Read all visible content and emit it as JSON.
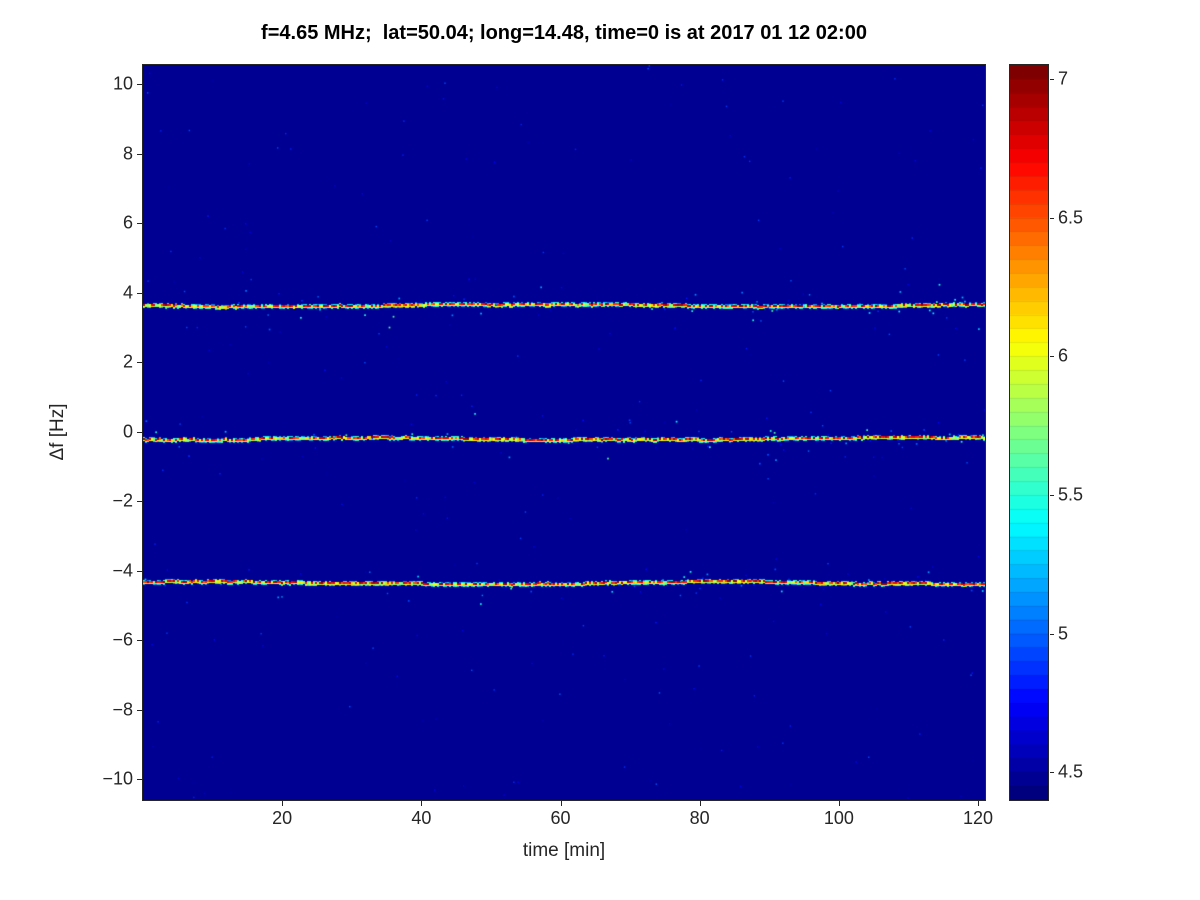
{
  "chart_data": {
    "type": "heatmap",
    "title": "f=4.65 MHz;  lat=50.04; long=14.48, time=0 is at 2017 01 12 02:00",
    "xlabel": "time [min]",
    "ylabel": "Δf [Hz]",
    "xlim": [
      0,
      121
    ],
    "ylim": [
      -10.6,
      10.55
    ],
    "xticks": [
      20,
      40,
      60,
      80,
      100,
      120
    ],
    "yticks": [
      10,
      8,
      6,
      4,
      2,
      0,
      -2,
      -4,
      -6,
      -8,
      -10
    ],
    "grid": false,
    "colorbar": {
      "colormap": "jet",
      "clim": [
        4.4,
        7.05
      ],
      "ticks": [
        4.5,
        5,
        5.5,
        6,
        6.5,
        7
      ],
      "position": "right"
    },
    "background_value": 4.45,
    "spectral_lines": [
      {
        "delta_f_hz": 3.65,
        "min_value": 5.7,
        "max_value": 7.05
      },
      {
        "delta_f_hz": -0.2,
        "min_value": 5.7,
        "max_value": 7.05
      },
      {
        "delta_f_hz": -4.35,
        "min_value": 5.7,
        "max_value": 7.05
      }
    ]
  },
  "colors": {
    "figure_background": "#ffffff",
    "axis": "#262626",
    "deep_blue_background": "#00008f"
  }
}
